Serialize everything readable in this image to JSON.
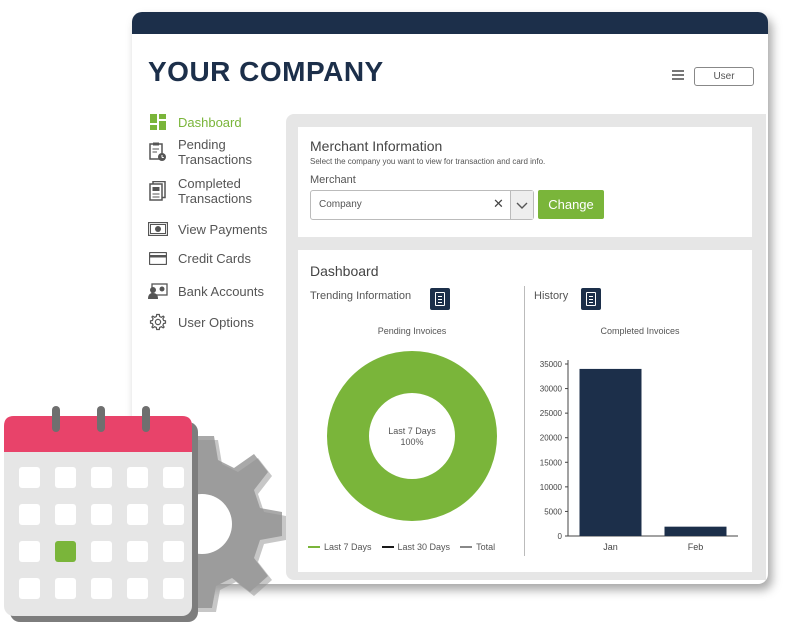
{
  "brand": "YOUR COMPANY",
  "header": {
    "user_label": "User",
    "menu_icon": "hamburger-icon"
  },
  "sidebar": {
    "items": [
      {
        "label1": "Dashboard",
        "label2": "",
        "icon": "dashboard-icon",
        "active": true
      },
      {
        "label1": "Pending",
        "label2": "Transactions",
        "icon": "pending-clipboard-icon"
      },
      {
        "label1": "Completed",
        "label2": "Transactions",
        "icon": "completed-document-icon"
      },
      {
        "label1": "View Payments",
        "label2": "",
        "icon": "money-icon"
      },
      {
        "label1": "Credit Cards",
        "label2": "",
        "icon": "credit-card-icon"
      },
      {
        "label1": "Bank Accounts",
        "label2": "",
        "icon": "bank-account-icon"
      },
      {
        "label1": "User Options",
        "label2": "",
        "icon": "gear-icon"
      }
    ]
  },
  "merchant": {
    "title": "Merchant Information",
    "subtitle": "Select the company you want to view for transaction and card info.",
    "field_label": "Merchant",
    "select_value": "Company",
    "change_label": "Change"
  },
  "dashboard": {
    "title": "Dashboard",
    "trending_label": "Trending Information",
    "history_label": "History"
  },
  "colors": {
    "navy": "#1c2f4a",
    "green": "#7ab53a",
    "accent_pink": "#e8436a"
  },
  "chart_data": [
    {
      "type": "pie",
      "title": "Pending Invoices",
      "center_label": "Last 7 Days",
      "center_value": "100%",
      "categories": [
        "Last 7 Days",
        "Last 30 Days",
        "Total"
      ],
      "values": [
        100,
        0,
        0
      ],
      "colors": [
        "#7ab53a",
        "#1a1a1a",
        "#888888"
      ],
      "legend_position": "bottom"
    },
    {
      "type": "bar",
      "title": "Completed Invoices",
      "categories": [
        "Jan",
        "Feb"
      ],
      "values": [
        34000,
        1900
      ],
      "ylim": [
        0,
        35000
      ],
      "yticks": [
        0,
        5000,
        10000,
        15000,
        20000,
        25000,
        30000,
        35000
      ],
      "color": "#1c2f4a"
    }
  ]
}
